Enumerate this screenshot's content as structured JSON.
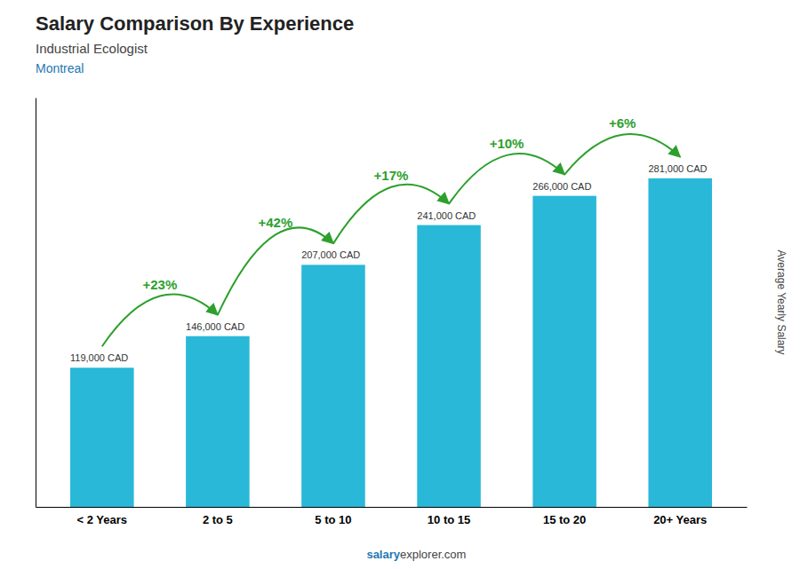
{
  "chart_data": {
    "type": "bar",
    "title": "Salary Comparison By Experience",
    "subtitle": [
      "Industrial Ecologist",
      "Montreal"
    ],
    "categories": [
      "< 2 Years",
      "2 to 5",
      "5 to 10",
      "10 to 15",
      "15 to 20",
      "20+ Years"
    ],
    "values": [
      119000,
      146000,
      207000,
      241000,
      266000,
      281000
    ],
    "value_labels": [
      "119,000 CAD",
      "146,000 CAD",
      "207,000 CAD",
      "241,000 CAD",
      "266,000 CAD",
      "281,000 CAD"
    ],
    "data_labels": true,
    "annotations": [
      "+23%",
      "+42%",
      "+17%",
      "+10%",
      "+6%"
    ],
    "ylabel": "Average Yearly Salary",
    "footer": [
      "salary",
      "explorer.com"
    ],
    "color": "#29B8D8",
    "ylim": [
      0,
      350000
    ],
    "tick_labels": "x",
    "grid": false
  }
}
